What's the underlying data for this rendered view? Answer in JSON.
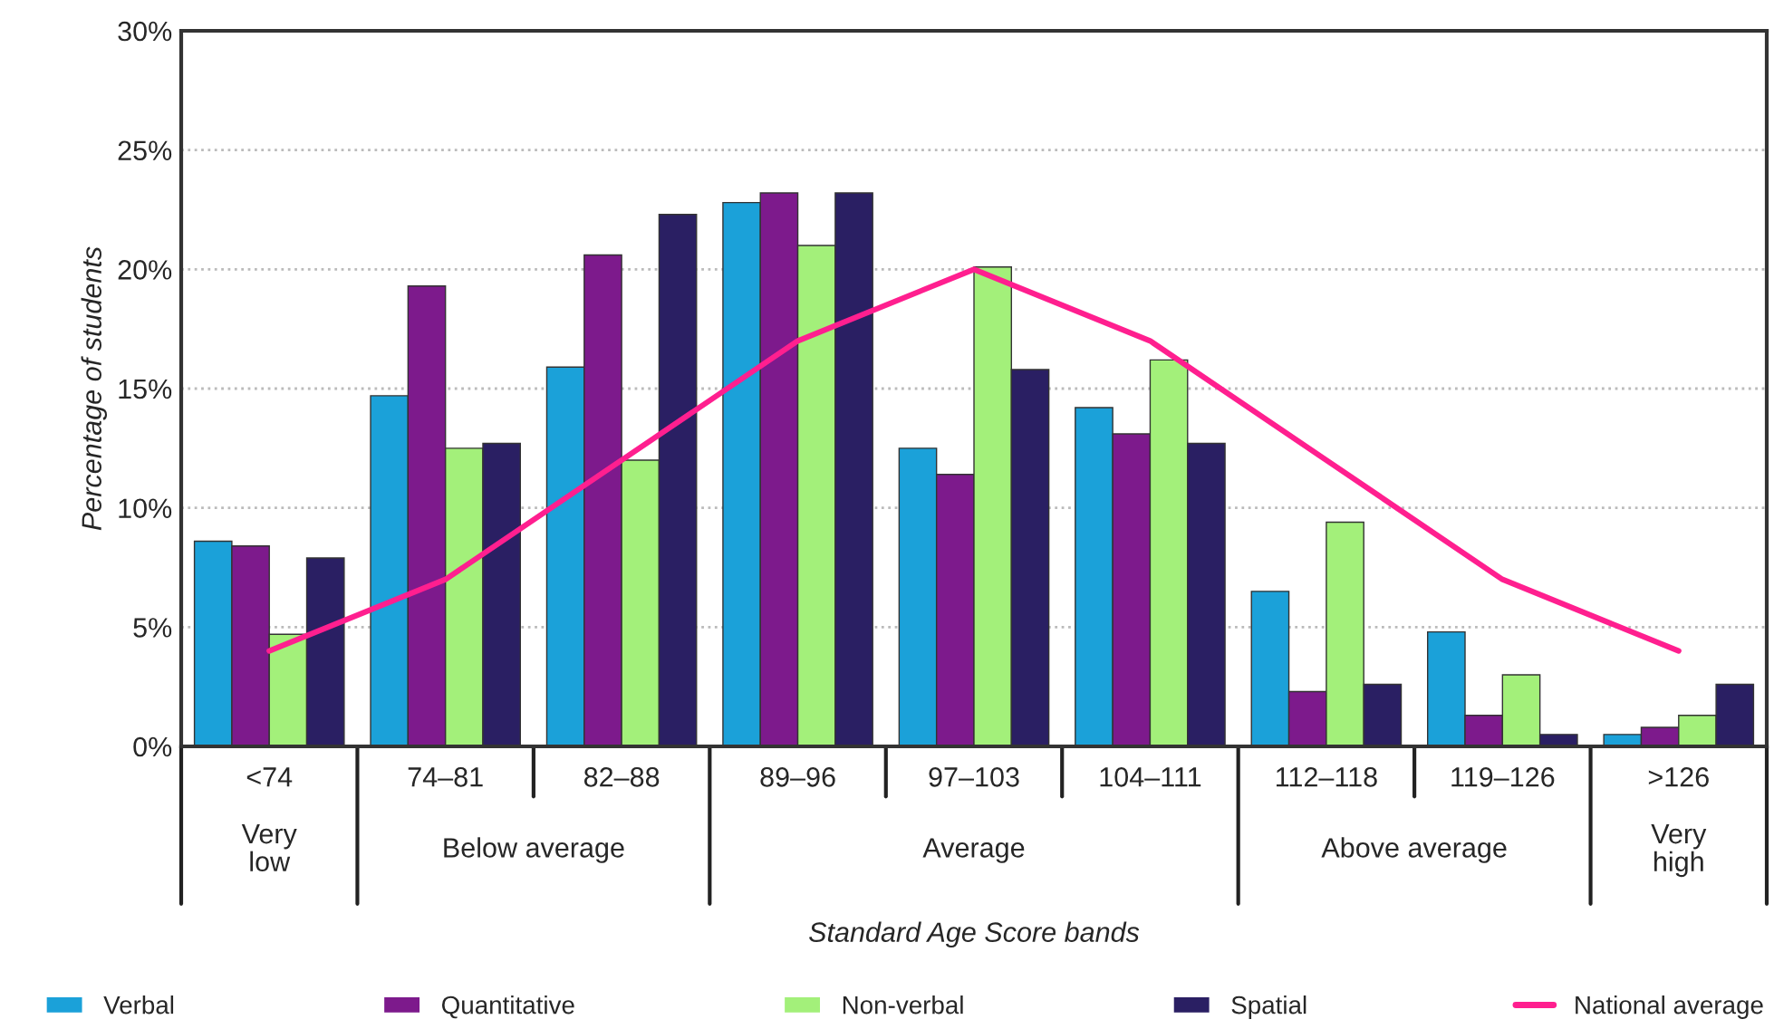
{
  "chart_data": {
    "type": "bar",
    "xlabel": "Standard Age Score bands",
    "ylabel": "Percentage of students",
    "categories": [
      "<74",
      "74–81",
      "82–88",
      "89–96",
      "97–103",
      "104–111",
      "112–118",
      "119–126",
      ">126"
    ],
    "series": [
      {
        "name": "Verbal",
        "color": "#1ba1d9",
        "values": [
          8.6,
          14.7,
          15.9,
          22.8,
          12.5,
          14.2,
          6.5,
          4.8,
          0.5
        ]
      },
      {
        "name": "Quantitative",
        "color": "#7d1a8c",
        "values": [
          8.4,
          19.3,
          20.6,
          23.2,
          11.4,
          13.1,
          2.3,
          1.3,
          0.8
        ]
      },
      {
        "name": "Non-verbal",
        "color": "#a3f07a",
        "values": [
          4.7,
          12.5,
          12.0,
          21.0,
          20.1,
          16.2,
          9.4,
          3.0,
          1.3
        ]
      },
      {
        "name": "Spatial",
        "color": "#2a1f63",
        "values": [
          7.9,
          12.7,
          22.3,
          23.2,
          15.8,
          12.7,
          2.6,
          0.5,
          2.6
        ]
      },
      {
        "name": "National average",
        "type": "line",
        "color": "#ff1f8f",
        "values": [
          4,
          7,
          12,
          17,
          20,
          17,
          12,
          7,
          4
        ]
      }
    ],
    "annotations": [
      "Very\nlow",
      "Below average",
      "Average",
      "Above average",
      "Very\nhigh"
    ],
    "ylim": [
      0,
      30
    ],
    "yticks": [
      {
        "value": 0,
        "label": "0%"
      },
      {
        "value": 5,
        "label": "5%"
      },
      {
        "value": 10,
        "label": "10%"
      },
      {
        "value": 15,
        "label": "15%"
      },
      {
        "value": 20,
        "label": "20%"
      },
      {
        "value": 25,
        "label": "25%"
      },
      {
        "value": 30,
        "label": "30%"
      }
    ],
    "grid": "y",
    "legend": "bottom",
    "line_style": "solid",
    "marker": "none"
  }
}
